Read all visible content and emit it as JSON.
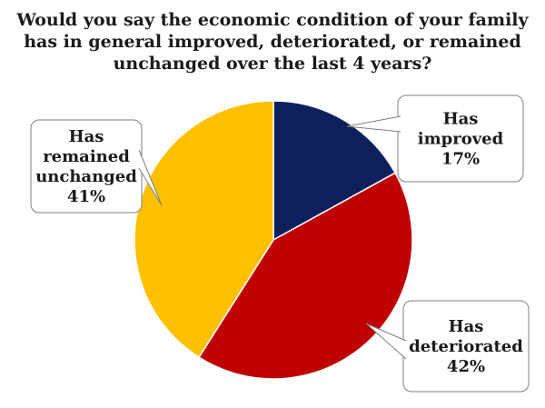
{
  "chart_data": {
    "type": "pie",
    "title": [
      "Would you say the economic condition of your family",
      "has in general improved, deteriorated, or remained",
      "unchanged over the last 4 years?"
    ],
    "slices": [
      {
        "label_lines": [
          "Has",
          "improved"
        ],
        "value": 17,
        "value_label": "17%",
        "color": "#0D1F5C"
      },
      {
        "label_lines": [
          "Has",
          "deteriorated"
        ],
        "value": 42,
        "value_label": "42%",
        "color": "#C00000"
      },
      {
        "label_lines": [
          "Has",
          "remained",
          "unchanged"
        ],
        "value": 41,
        "value_label": "41%",
        "color": "#FFC000"
      }
    ]
  }
}
